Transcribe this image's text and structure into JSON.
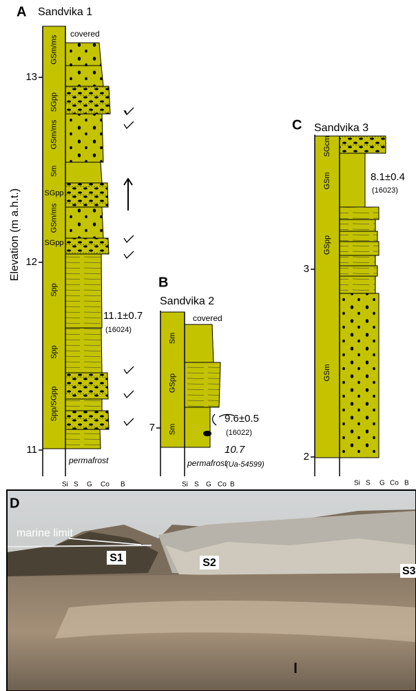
{
  "y_axis_label": "Elevation (m a.h.t.)",
  "grain_size_scale": [
    "Si",
    "S",
    "G",
    "Co",
    "B"
  ],
  "panels": [
    {
      "letter": "A",
      "title": "Sandvika 1",
      "ticks": [
        13,
        12,
        11
      ],
      "top_note": "covered",
      "bottom_note": "permafrost",
      "facies": [
        "GSm/ms",
        "SGpp",
        "GSm/ms",
        "Sm",
        "SGpp",
        "GSm/ms",
        "SGpp",
        "Spp",
        "Spp",
        "Spp/SGpp"
      ],
      "ages": [
        "11.1±0.7",
        "(16024)"
      ]
    },
    {
      "letter": "B",
      "title": "Sandvika 2",
      "ticks": [
        7
      ],
      "top_note": "covered",
      "bottom_note": "permafrost",
      "facies": [
        "Sm",
        "GSpp",
        "Sm"
      ],
      "ages": [
        "9.6±0.5",
        "(16022)",
        "10.7",
        "(Ua-54599)"
      ]
    },
    {
      "letter": "C",
      "title": "Sandvika 3",
      "ticks": [
        3,
        2
      ],
      "facies": [
        "SGcm",
        "GSm",
        "GSpp",
        "GSm"
      ],
      "ages": [
        "8.1±0.4",
        "(16023)"
      ]
    }
  ],
  "photo": {
    "letter": "D",
    "annotations": [
      "marine limit",
      "S1",
      "S2",
      "S3"
    ]
  }
}
